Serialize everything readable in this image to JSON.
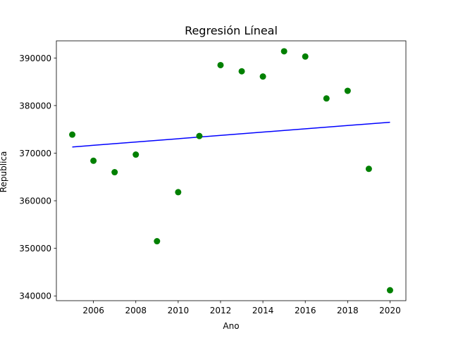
{
  "chart_data": {
    "type": "scatter",
    "title": "Regresión Líneal",
    "xlabel": "Ano",
    "ylabel": "Republica",
    "xlim": [
      2004.25,
      2020.75
    ],
    "ylim": [
      339000,
      393600
    ],
    "grid": false,
    "xticks": [
      2006,
      2008,
      2010,
      2012,
      2014,
      2016,
      2018,
      2020
    ],
    "yticks": [
      340000,
      350000,
      360000,
      370000,
      380000,
      390000
    ],
    "series": [
      {
        "kind": "scatter",
        "color": "#008000",
        "x": [
          2005,
          2006,
          2007,
          2008,
          2009,
          2010,
          2011,
          2012,
          2013,
          2014,
          2015,
          2016,
          2017,
          2018,
          2019,
          2020
        ],
        "y": [
          373900,
          368400,
          366000,
          369700,
          351500,
          361800,
          373600,
          388500,
          387200,
          386100,
          391400,
          390300,
          381500,
          383100,
          366700,
          341200
        ]
      },
      {
        "kind": "line",
        "color": "#0000ff",
        "x": [
          2005,
          2020
        ],
        "y": [
          371300,
          376500
        ]
      }
    ]
  }
}
